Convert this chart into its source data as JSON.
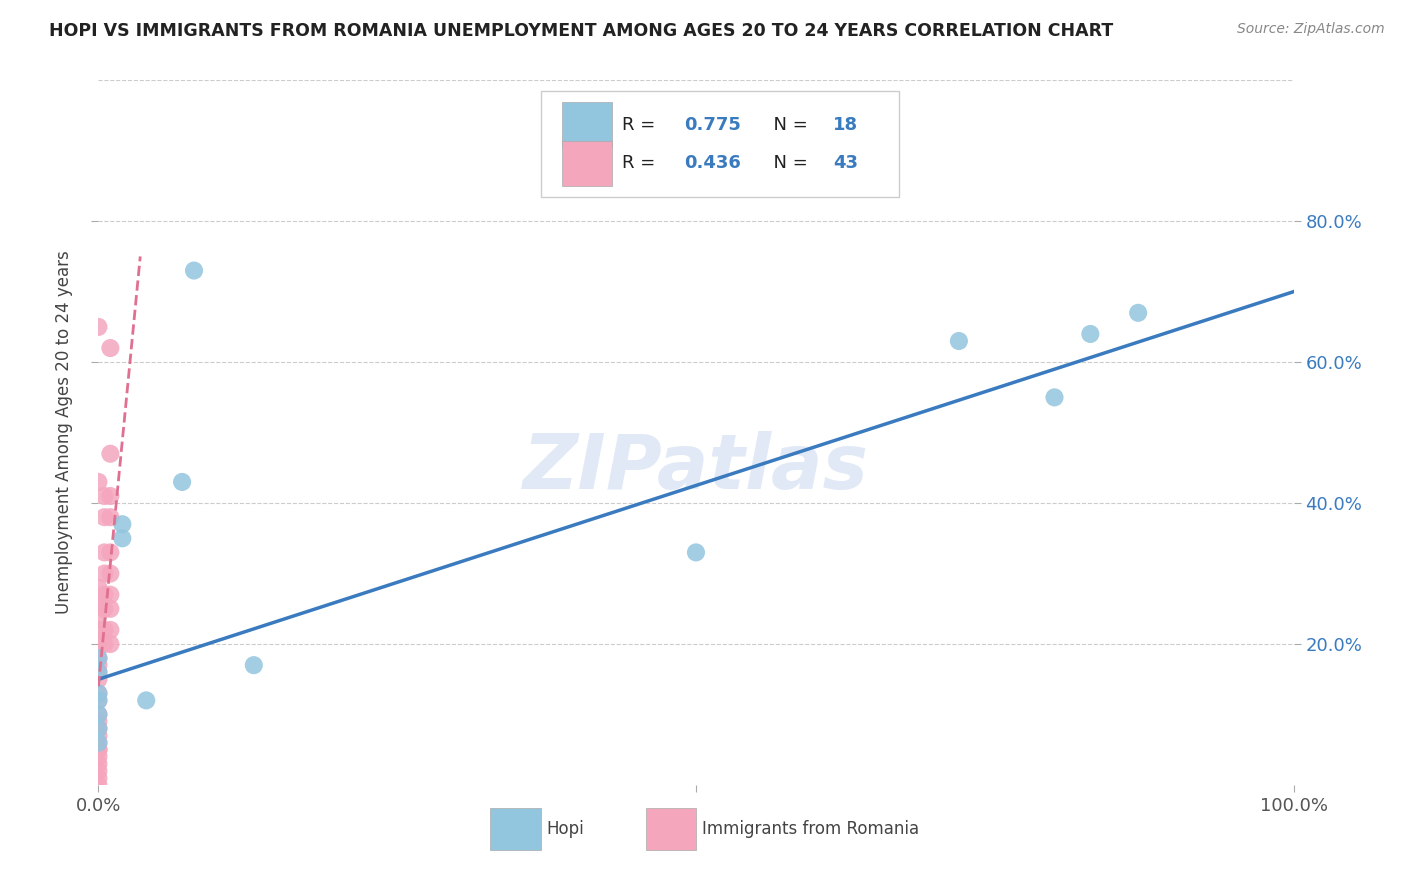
{
  "title": "HOPI VS IMMIGRANTS FROM ROMANIA UNEMPLOYMENT AMONG AGES 20 TO 24 YEARS CORRELATION CHART",
  "source": "Source: ZipAtlas.com",
  "ylabel": "Unemployment Among Ages 20 to 24 years",
  "xlim": [
    0,
    1.0
  ],
  "ylim": [
    0,
    1.0
  ],
  "hopi_R": "0.775",
  "hopi_N": "18",
  "romania_R": "0.436",
  "romania_N": "43",
  "hopi_color": "#92c5de",
  "romania_color": "#f4a6bd",
  "hopi_line_color": "#3a7bbf",
  "romania_line_color": "#e07090",
  "watermark": "ZIPatlas",
  "hopi_points_x": [
    0.0,
    0.0,
    0.0,
    0.0,
    0.0,
    0.0,
    0.0,
    0.02,
    0.02,
    0.04,
    0.07,
    0.08,
    0.13,
    0.5,
    0.72,
    0.8,
    0.83,
    0.87
  ],
  "hopi_points_y": [
    0.18,
    0.16,
    0.13,
    0.12,
    0.1,
    0.08,
    0.06,
    0.37,
    0.35,
    0.12,
    0.43,
    0.73,
    0.17,
    0.33,
    0.63,
    0.55,
    0.64,
    0.67
  ],
  "romania_points_x": [
    0.0,
    0.0,
    0.0,
    0.0,
    0.0,
    0.0,
    0.0,
    0.0,
    0.0,
    0.0,
    0.0,
    0.0,
    0.0,
    0.0,
    0.0,
    0.0,
    0.0,
    0.0,
    0.0,
    0.0,
    0.0,
    0.0,
    0.0,
    0.0,
    0.0,
    0.005,
    0.005,
    0.005,
    0.005,
    0.005,
    0.005,
    0.005,
    0.005,
    0.01,
    0.01,
    0.01,
    0.01,
    0.01,
    0.01,
    0.01,
    0.01,
    0.01,
    0.01
  ],
  "romania_points_y": [
    0.0,
    0.01,
    0.02,
    0.03,
    0.04,
    0.05,
    0.05,
    0.06,
    0.07,
    0.08,
    0.09,
    0.1,
    0.12,
    0.13,
    0.15,
    0.16,
    0.17,
    0.18,
    0.2,
    0.22,
    0.24,
    0.26,
    0.28,
    0.43,
    0.65,
    0.2,
    0.22,
    0.25,
    0.27,
    0.3,
    0.33,
    0.38,
    0.41,
    0.2,
    0.22,
    0.25,
    0.27,
    0.3,
    0.33,
    0.38,
    0.41,
    0.47,
    0.62
  ],
  "hopi_line_x0": 0.0,
  "hopi_line_y0": 0.15,
  "hopi_line_x1": 1.0,
  "hopi_line_y1": 0.7,
  "romania_line_x0": 0.0,
  "romania_line_y0": 0.14,
  "romania_line_x1": 0.035,
  "romania_line_y1": 0.75
}
